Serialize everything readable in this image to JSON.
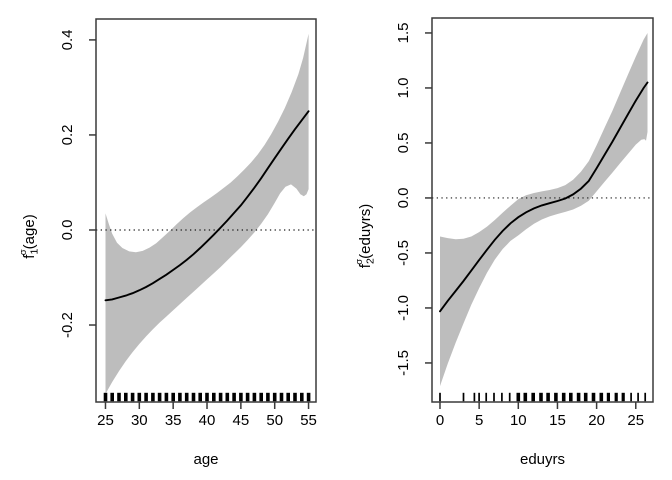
{
  "figure": {
    "background": "#ffffff",
    "band_color": "#bdbdbd",
    "curve_color": "#000000",
    "axis_color": "#3a3a3a",
    "zero_line_color": "#1a1a1a",
    "rug_color": "#000000"
  },
  "chart_data": [
    {
      "type": "area",
      "title": "",
      "xlabel": "age",
      "ylabel": "f1^sigma(age)",
      "ylabel_parts": {
        "base": "f",
        "sub": "1",
        "sup": "σ",
        "rest": "(age)"
      },
      "xlim": [
        23.6,
        56.1
      ],
      "ylim": [
        -0.362,
        0.444
      ],
      "x_ticks": [
        25,
        30,
        35,
        40,
        45,
        50,
        55
      ],
      "x_tick_labels": [
        "25",
        "30",
        "35",
        "40",
        "45",
        "50",
        "55"
      ],
      "y_ticks": [
        -0.2,
        0.0,
        0.2,
        0.4
      ],
      "y_tick_labels": [
        "-0.2",
        "0.0",
        "0.2",
        "0.4"
      ],
      "zero_line": 0.0,
      "grid": false,
      "curve": [
        [
          25,
          -0.148
        ],
        [
          26,
          -0.146
        ],
        [
          27,
          -0.142
        ],
        [
          28,
          -0.138
        ],
        [
          29,
          -0.133
        ],
        [
          30,
          -0.127
        ],
        [
          31,
          -0.12
        ],
        [
          32,
          -0.112
        ],
        [
          33,
          -0.103
        ],
        [
          34,
          -0.094
        ],
        [
          35,
          -0.084
        ],
        [
          36,
          -0.074
        ],
        [
          37,
          -0.063
        ],
        [
          38,
          -0.051
        ],
        [
          39,
          -0.038
        ],
        [
          40,
          -0.024
        ],
        [
          41,
          -0.01
        ],
        [
          42,
          0.005
        ],
        [
          43,
          0.02
        ],
        [
          44,
          0.036
        ],
        [
          45,
          0.052
        ],
        [
          46,
          0.07
        ],
        [
          47,
          0.089
        ],
        [
          48,
          0.109
        ],
        [
          49,
          0.13
        ],
        [
          50,
          0.151
        ],
        [
          51,
          0.172
        ],
        [
          52,
          0.192
        ],
        [
          53,
          0.212
        ],
        [
          54,
          0.231
        ],
        [
          55,
          0.25
        ]
      ],
      "band_upper": [
        [
          25,
          0.035
        ],
        [
          25.5,
          0.012
        ],
        [
          26,
          -0.008
        ],
        [
          26.7,
          -0.027
        ],
        [
          27.5,
          -0.038
        ],
        [
          28.5,
          -0.045
        ],
        [
          29.5,
          -0.047
        ],
        [
          30.5,
          -0.044
        ],
        [
          31.5,
          -0.037
        ],
        [
          32.5,
          -0.028
        ],
        [
          33.5,
          -0.015
        ],
        [
          34.5,
          -0.002
        ],
        [
          35.5,
          0.012
        ],
        [
          36.5,
          0.025
        ],
        [
          37.5,
          0.037
        ],
        [
          38.5,
          0.048
        ],
        [
          39.5,
          0.058
        ],
        [
          40.5,
          0.068
        ],
        [
          41.5,
          0.078
        ],
        [
          42.5,
          0.089
        ],
        [
          43.5,
          0.1
        ],
        [
          44.5,
          0.113
        ],
        [
          45.5,
          0.127
        ],
        [
          46.5,
          0.142
        ],
        [
          47.5,
          0.159
        ],
        [
          48.5,
          0.179
        ],
        [
          49.5,
          0.202
        ],
        [
          50.5,
          0.228
        ],
        [
          51.5,
          0.257
        ],
        [
          52.5,
          0.29
        ],
        [
          53.5,
          0.328
        ],
        [
          54.2,
          0.362
        ],
        [
          55,
          0.413
        ]
      ],
      "band_lower": [
        [
          25,
          -0.345
        ],
        [
          26,
          -0.32
        ],
        [
          27,
          -0.297
        ],
        [
          28,
          -0.276
        ],
        [
          29,
          -0.257
        ],
        [
          30,
          -0.24
        ],
        [
          31,
          -0.224
        ],
        [
          32,
          -0.209
        ],
        [
          33,
          -0.195
        ],
        [
          34,
          -0.182
        ],
        [
          35,
          -0.169
        ],
        [
          36,
          -0.156
        ],
        [
          37,
          -0.143
        ],
        [
          38,
          -0.13
        ],
        [
          39,
          -0.117
        ],
        [
          40,
          -0.104
        ],
        [
          41,
          -0.091
        ],
        [
          42,
          -0.078
        ],
        [
          43,
          -0.064
        ],
        [
          44,
          -0.05
        ],
        [
          45,
          -0.036
        ],
        [
          46,
          -0.021
        ],
        [
          47,
          -0.005
        ],
        [
          48,
          0.013
        ],
        [
          49,
          0.033
        ],
        [
          50,
          0.057
        ],
        [
          50.8,
          0.077
        ],
        [
          51.6,
          0.091
        ],
        [
          52.4,
          0.096
        ],
        [
          53.2,
          0.087
        ],
        [
          53.8,
          0.075
        ],
        [
          54.3,
          0.071
        ],
        [
          54.7,
          0.075
        ],
        [
          55,
          0.086
        ]
      ],
      "rug": [
        [
          25,
          3.6
        ],
        [
          26,
          3.6
        ],
        [
          27,
          3.6
        ],
        [
          28,
          3.6
        ],
        [
          29,
          3.6
        ],
        [
          30,
          3.6
        ],
        [
          31,
          3.6
        ],
        [
          32,
          3.6
        ],
        [
          33,
          3.6
        ],
        [
          34,
          3.6
        ],
        [
          35,
          3.6
        ],
        [
          36,
          3.6
        ],
        [
          37,
          3.6
        ],
        [
          38,
          3.6
        ],
        [
          39,
          3.6
        ],
        [
          40,
          3.6
        ],
        [
          41,
          3.6
        ],
        [
          42,
          3.6
        ],
        [
          43,
          3.6
        ],
        [
          44,
          3.6
        ],
        [
          45,
          3.6
        ],
        [
          46,
          3.6
        ],
        [
          47,
          3.6
        ],
        [
          48,
          3.6
        ],
        [
          49,
          3.6
        ],
        [
          50,
          3.6
        ],
        [
          51,
          3.6
        ],
        [
          52,
          3.6
        ],
        [
          53,
          3.6
        ],
        [
          54,
          3.6
        ],
        [
          55,
          3.6
        ]
      ]
    },
    {
      "type": "area",
      "title": "",
      "xlabel": "eduyrs",
      "ylabel": "f2^sigma(eduyrs)",
      "ylabel_parts": {
        "base": "f",
        "sub": "2",
        "sup": "σ",
        "rest": "(eduyrs)"
      },
      "xlim": [
        -1.02,
        27.2
      ],
      "ylim": [
        -1.855,
        1.636
      ],
      "x_ticks": [
        0,
        5,
        10,
        15,
        20,
        25
      ],
      "x_tick_labels": [
        "0",
        "5",
        "10",
        "15",
        "20",
        "25"
      ],
      "y_ticks": [
        -1.5,
        -1.0,
        -0.5,
        0.0,
        0.5,
        1.0,
        1.5
      ],
      "y_tick_labels": [
        "-1.5",
        "-1.0",
        "-0.5",
        "0.0",
        "0.5",
        "1.0",
        "1.5"
      ],
      "zero_line": 0.0,
      "grid": false,
      "curve": [
        [
          0,
          -1.03
        ],
        [
          1,
          -0.935
        ],
        [
          2,
          -0.845
        ],
        [
          3,
          -0.755
        ],
        [
          4,
          -0.66
        ],
        [
          5,
          -0.565
        ],
        [
          6,
          -0.47
        ],
        [
          7,
          -0.38
        ],
        [
          8,
          -0.3
        ],
        [
          9,
          -0.23
        ],
        [
          10,
          -0.175
        ],
        [
          11,
          -0.13
        ],
        [
          12,
          -0.095
        ],
        [
          13,
          -0.068
        ],
        [
          14,
          -0.048
        ],
        [
          15,
          -0.028
        ],
        [
          16,
          -0.005
        ],
        [
          17,
          0.032
        ],
        [
          18,
          0.085
        ],
        [
          19,
          0.155
        ],
        [
          20,
          0.27
        ],
        [
          21,
          0.39
        ],
        [
          22,
          0.51
        ],
        [
          23,
          0.635
        ],
        [
          24,
          0.76
        ],
        [
          25,
          0.885
        ],
        [
          26,
          1.0
        ],
        [
          26.5,
          1.05
        ]
      ],
      "band_upper": [
        [
          0,
          -0.35
        ],
        [
          1,
          -0.365
        ],
        [
          2,
          -0.375
        ],
        [
          3,
          -0.37
        ],
        [
          4,
          -0.35
        ],
        [
          5,
          -0.31
        ],
        [
          6,
          -0.26
        ],
        [
          7,
          -0.2
        ],
        [
          8,
          -0.135
        ],
        [
          9,
          -0.07
        ],
        [
          10,
          -0.01
        ],
        [
          11,
          0.025
        ],
        [
          12,
          0.045
        ],
        [
          13,
          0.06
        ],
        [
          14,
          0.072
        ],
        [
          15,
          0.09
        ],
        [
          16,
          0.117
        ],
        [
          17,
          0.165
        ],
        [
          18,
          0.24
        ],
        [
          19,
          0.335
        ],
        [
          20,
          0.48
        ],
        [
          21,
          0.635
        ],
        [
          22,
          0.79
        ],
        [
          23,
          0.955
        ],
        [
          24,
          1.12
        ],
        [
          25,
          1.285
        ],
        [
          26,
          1.44
        ],
        [
          26.5,
          1.5
        ]
      ],
      "band_lower": [
        [
          0,
          -1.71
        ],
        [
          1,
          -1.505
        ],
        [
          2,
          -1.315
        ],
        [
          3,
          -1.14
        ],
        [
          4,
          -0.97
        ],
        [
          5,
          -0.82
        ],
        [
          6,
          -0.68
        ],
        [
          7,
          -0.56
        ],
        [
          8,
          -0.465
        ],
        [
          9,
          -0.39
        ],
        [
          10,
          -0.34
        ],
        [
          11,
          -0.285
        ],
        [
          12,
          -0.235
        ],
        [
          13,
          -0.196
        ],
        [
          14,
          -0.168
        ],
        [
          15,
          -0.146
        ],
        [
          16,
          -0.127
        ],
        [
          17,
          -0.105
        ],
        [
          18,
          -0.07
        ],
        [
          19,
          -0.025
        ],
        [
          20,
          0.06
        ],
        [
          21,
          0.145
        ],
        [
          22,
          0.23
        ],
        [
          23,
          0.315
        ],
        [
          24,
          0.4
        ],
        [
          25,
          0.485
        ],
        [
          25.7,
          0.53
        ],
        [
          26.1,
          0.535
        ],
        [
          26.3,
          0.52
        ],
        [
          26.5,
          0.6
        ]
      ],
      "rug": [
        [
          0,
          1.7
        ],
        [
          3,
          1.7
        ],
        [
          4.4,
          1.7
        ],
        [
          5,
          1.7
        ],
        [
          5.9,
          1.7
        ],
        [
          6.9,
          1.7
        ],
        [
          7.9,
          1.7
        ],
        [
          8.9,
          1.7
        ],
        [
          10,
          3.6
        ],
        [
          10.9,
          3.6
        ],
        [
          11.9,
          3.6
        ],
        [
          12.9,
          3.6
        ],
        [
          13.8,
          3.6
        ],
        [
          14.8,
          3.6
        ],
        [
          15.8,
          3.6
        ],
        [
          16.7,
          3.6
        ],
        [
          17.7,
          3.6
        ],
        [
          18.6,
          3.6
        ],
        [
          19.6,
          3.6
        ],
        [
          20.6,
          3.6
        ],
        [
          21.5,
          3.2
        ],
        [
          22.5,
          3.2
        ],
        [
          23.4,
          3.2
        ],
        [
          24.4,
          1.7
        ],
        [
          25.3,
          1.7
        ],
        [
          26.2,
          1.7
        ]
      ]
    }
  ]
}
